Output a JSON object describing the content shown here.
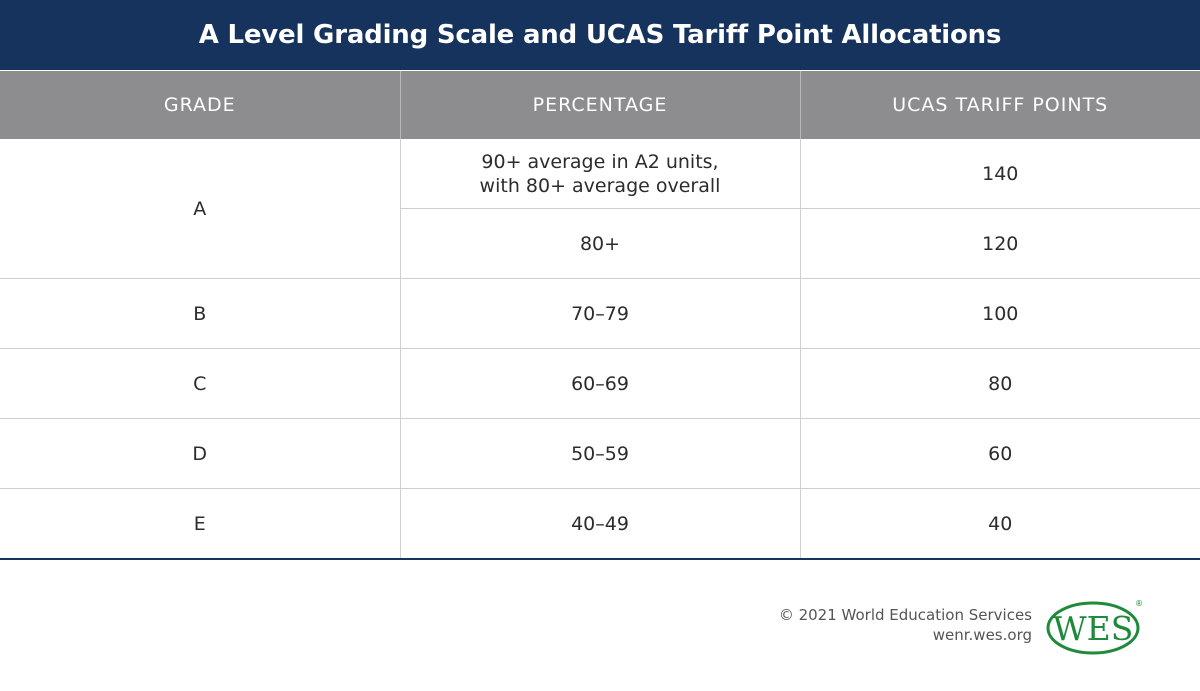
{
  "title": "A Level Grading Scale and UCAS Tariff Point Allocations",
  "table": {
    "headers": [
      "GRADE",
      "PERCENTAGE",
      "UCAS TARIFF POINTS"
    ],
    "rows": [
      {
        "grade": "A",
        "percentage_line1": "90+ average in A2 units,",
        "percentage_line2": "with 80+ average overall",
        "points": "140"
      },
      {
        "percentage": "80+",
        "points": "120"
      },
      {
        "grade": "B",
        "percentage": "70–79",
        "points": "100"
      },
      {
        "grade": "C",
        "percentage": "60–69",
        "points": "80"
      },
      {
        "grade": "D",
        "percentage": "50–59",
        "points": "60"
      },
      {
        "grade": "E",
        "percentage": "40–49",
        "points": "40"
      }
    ]
  },
  "footer": {
    "copyright": "© 2021 World Education Services",
    "url": "wenr.wes.org",
    "logo_text": "WES",
    "logo_registered": "®",
    "logo_color": "#1f8a3c"
  }
}
